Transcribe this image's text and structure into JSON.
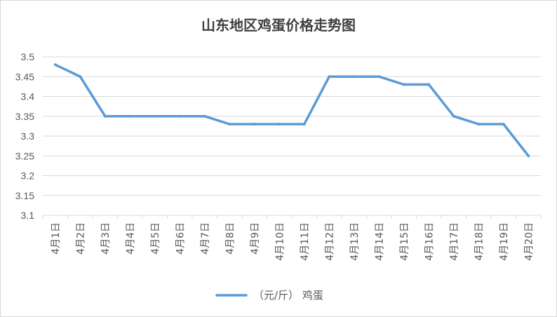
{
  "chart_data": {
    "type": "line",
    "title": "山东地区鸡蛋价格走势图",
    "categories": [
      "4月1日",
      "4月2日",
      "4月3日",
      "4月4日",
      "4月5日",
      "4月6日",
      "4月7日",
      "4月8日",
      "4月9日",
      "4月10日",
      "4月11日",
      "4月12日",
      "4月13日",
      "4月14日",
      "4月15日",
      "4月16日",
      "4月17日",
      "4月18日",
      "4月19日",
      "4月20日"
    ],
    "series": [
      {
        "name": "（元/斤） 鸡蛋",
        "values": [
          3.48,
          3.45,
          3.35,
          3.35,
          3.35,
          3.35,
          3.35,
          3.33,
          3.33,
          3.33,
          3.33,
          3.45,
          3.45,
          3.45,
          3.43,
          3.43,
          3.35,
          3.33,
          3.33,
          3.25
        ]
      }
    ],
    "ylim": [
      3.1,
      3.5
    ],
    "yticks": [
      "3.1",
      "3.15",
      "3.2",
      "3.25",
      "3.3",
      "3.35",
      "3.4",
      "3.45",
      "3.5"
    ],
    "grid": true,
    "legend_position": "bottom",
    "xlabel": "",
    "ylabel": ""
  },
  "colors": {
    "series": "#5b9bd5",
    "grid": "#d9d9d9",
    "text": "#595959"
  }
}
